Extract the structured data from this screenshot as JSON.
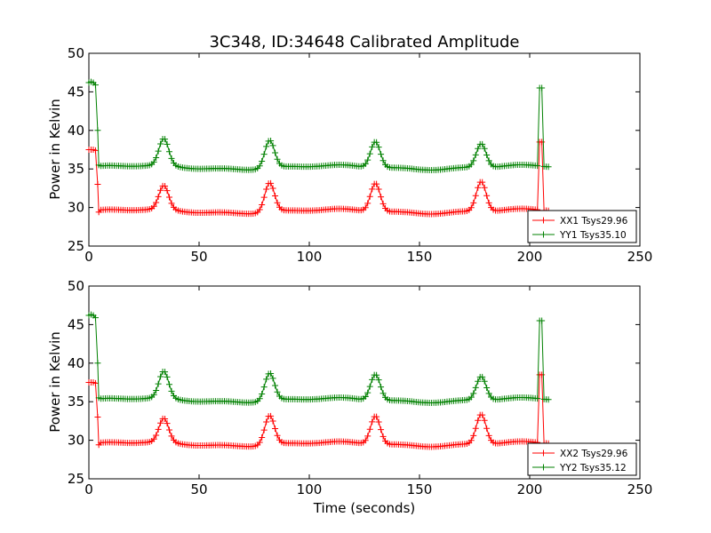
{
  "chart_data": [
    {
      "type": "line",
      "title": "3C348, ID:34648 Calibrated Amplitude",
      "xlabel": "",
      "ylabel": "Power in Kelvin",
      "xlim": [
        0,
        250
      ],
      "ylim": [
        25,
        50
      ],
      "xticks": [
        "0",
        "50",
        "100",
        "150",
        "200",
        "250"
      ],
      "yticks": [
        "25",
        "30",
        "35",
        "40",
        "45",
        "50"
      ],
      "grid": false,
      "legend_position": "bottom-right",
      "series": [
        {
          "name": "XX1 Tsys29.96",
          "color": "#ff0000",
          "marker": "+",
          "base": 29.5,
          "x": [
            0,
            1,
            2,
            3,
            4,
            4.5
          ],
          "y": [
            37.5,
            37.5,
            37.5,
            37.4,
            33.0,
            29.4
          ]
        },
        {
          "name": "YY1 Tsys35.10",
          "color": "#008000",
          "marker": "+",
          "base": 35.2,
          "x": [
            0,
            1,
            2,
            3,
            4,
            4.5
          ],
          "y": [
            46.2,
            46.3,
            46.2,
            45.9,
            40.0,
            35.5
          ]
        }
      ],
      "peaks": [
        {
          "x": 34,
          "red": 32.6,
          "green": 38.7
        },
        {
          "x": 82,
          "red": 33.3,
          "green": 38.8
        },
        {
          "x": 130,
          "red": 33.2,
          "green": 38.6
        },
        {
          "x": 178,
          "red": 33.4,
          "green": 38.3
        }
      ],
      "spike": {
        "x": 205,
        "red": 38.5,
        "green": 45.5
      },
      "x_end": 209
    },
    {
      "type": "line",
      "title": "",
      "xlabel": "Time (seconds)",
      "ylabel": "Power in Kelvin",
      "xlim": [
        0,
        250
      ],
      "ylim": [
        25,
        50
      ],
      "xticks": [
        "0",
        "50",
        "100",
        "150",
        "200",
        "250"
      ],
      "yticks": [
        "25",
        "30",
        "35",
        "40",
        "45",
        "50"
      ],
      "grid": false,
      "legend_position": "bottom-right",
      "series": [
        {
          "name": "XX2 Tsys29.96",
          "color": "#ff0000",
          "marker": "+",
          "base": 29.5,
          "x": [
            0,
            1,
            2,
            3,
            4,
            4.5
          ],
          "y": [
            37.5,
            37.5,
            37.5,
            37.4,
            33.0,
            29.4
          ]
        },
        {
          "name": "YY2 Tsys35.12",
          "color": "#008000",
          "marker": "+",
          "base": 35.2,
          "x": [
            0,
            1,
            2,
            3,
            4,
            4.5
          ],
          "y": [
            46.2,
            46.3,
            46.2,
            45.9,
            40.0,
            35.5
          ]
        }
      ],
      "peaks": [
        {
          "x": 34,
          "red": 32.6,
          "green": 38.7
        },
        {
          "x": 82,
          "red": 33.3,
          "green": 38.8
        },
        {
          "x": 130,
          "red": 33.2,
          "green": 38.6
        },
        {
          "x": 178,
          "red": 33.4,
          "green": 38.3
        }
      ],
      "spike": {
        "x": 205,
        "red": 38.5,
        "green": 45.5
      },
      "x_end": 209
    }
  ]
}
